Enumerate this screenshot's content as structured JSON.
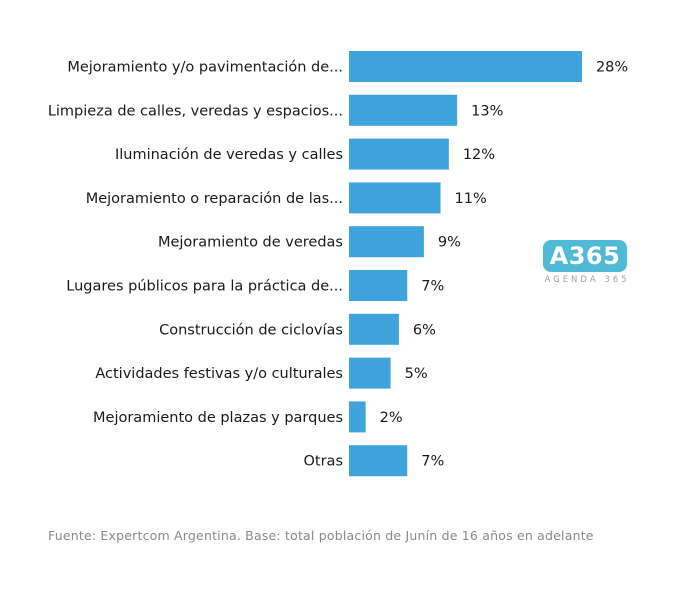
{
  "chart_data": {
    "type": "bar",
    "orientation": "horizontal",
    "categories": [
      "Mejoramiento y/o pavimentación de...",
      "Limpieza de calles, veredas y espacios...",
      "Iluminación de veredas y calles",
      "Mejoramiento o reparación de las...",
      "Mejoramiento de veredas",
      "Lugares públicos para la práctica de...",
      "Construcción de ciclovías",
      "Actividades festivas y/o culturales",
      "Mejoramiento de plazas y parques",
      "Otras"
    ],
    "values": [
      28,
      13,
      12,
      11,
      9,
      7,
      6,
      5,
      2,
      7
    ],
    "value_labels": [
      "28%",
      "13%",
      "12%",
      "11%",
      "9%",
      "7%",
      "6%",
      "5%",
      "2%",
      "7%"
    ],
    "unit": "%",
    "bar_color": "#3fa3dc",
    "grid": false,
    "legend": "none"
  },
  "source_text": "Fuente: Expertcom Argentina. Base: total población de Junín de 16 años en adelante",
  "logo": {
    "mark": "A365",
    "subtitle": "AGENDA 365",
    "color": "#4fb9d6"
  }
}
